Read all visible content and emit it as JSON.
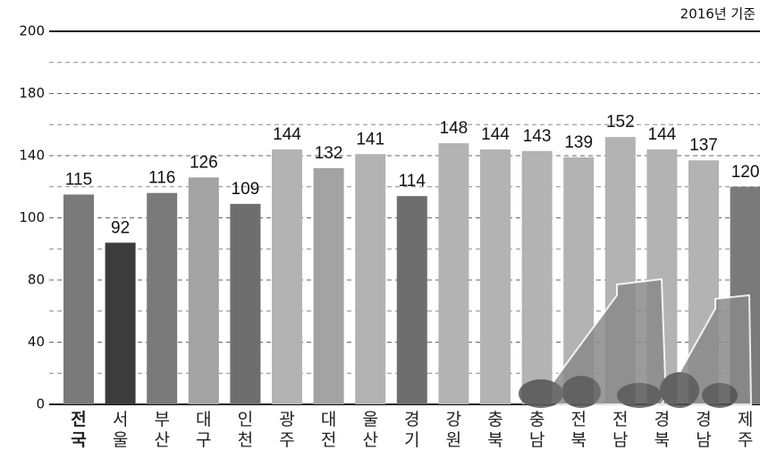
{
  "chart_data": {
    "type": "bar",
    "subtitle": "2016년 기준",
    "categories": [
      "전국",
      "서울",
      "부산",
      "대구",
      "인천",
      "광주",
      "대전",
      "울산",
      "경기",
      "강원",
      "충북",
      "충남",
      "전북",
      "전남",
      "경북",
      "경남",
      "제주"
    ],
    "values": [
      115,
      92,
      116,
      126,
      109,
      144,
      132,
      141,
      114,
      148,
      144,
      143,
      139,
      152,
      144,
      137,
      120
    ],
    "colors": [
      "#7a7a7a",
      "#3c3c3c",
      "#7a7a7a",
      "#a3a3a3",
      "#6e6e6e",
      "#b3b3b3",
      "#a3a3a3",
      "#b3b3b3",
      "#6e6e6e",
      "#b3b3b3",
      "#b3b3b3",
      "#b3b3b3",
      "#b3b3b3",
      "#b3b3b3",
      "#b3b3b3",
      "#b3b3b3",
      "#7a7a7a"
    ],
    "ylim": [
      0,
      200
    ],
    "yticks": [
      0,
      40,
      80,
      100,
      140,
      180,
      200
    ],
    "grid": true
  }
}
